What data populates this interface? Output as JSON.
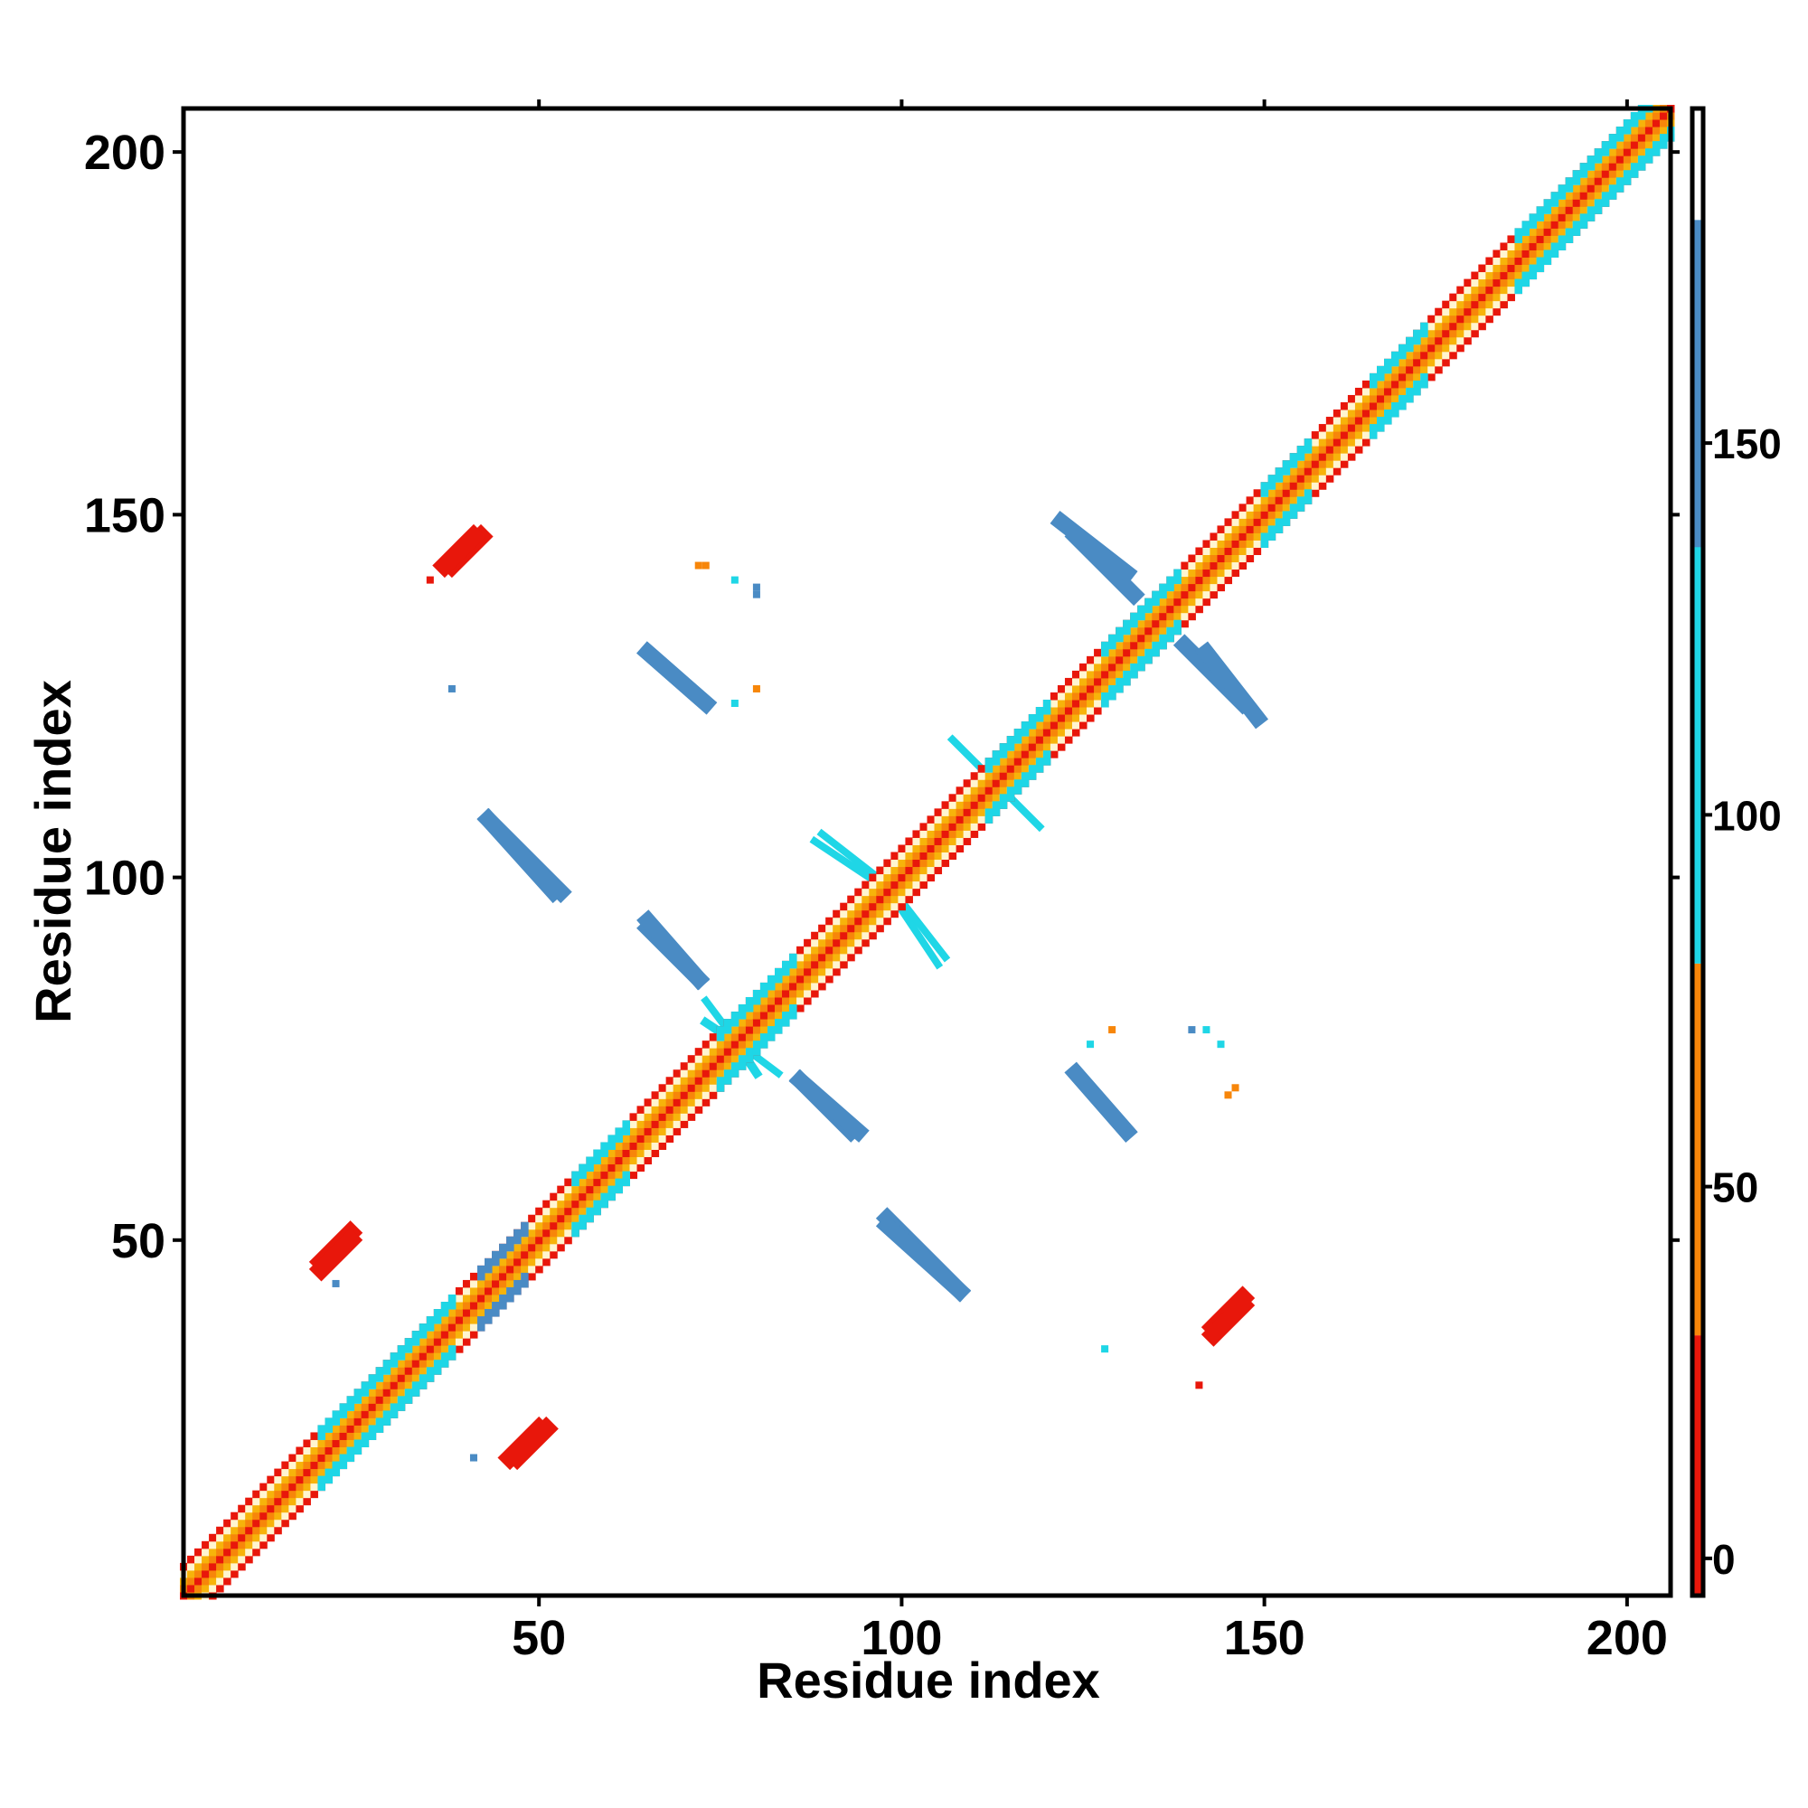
{
  "chart_data": {
    "type": "heatmap",
    "title": "",
    "xlabel": "Residue index",
    "ylabel": "Residue index",
    "xlim": [
      1,
      206
    ],
    "ylim": [
      1,
      206
    ],
    "x_ticks": [
      50,
      100,
      150,
      200
    ],
    "y_ticks": [
      50,
      100,
      150,
      200
    ],
    "colorbar": {
      "ticks": [
        0,
        50,
        100,
        150
      ],
      "range": [
        -5,
        195
      ],
      "segments": [
        {
          "from": -5,
          "to": 30,
          "color": "#e8170b"
        },
        {
          "from": 30,
          "to": 80,
          "color": "#f7860a"
        },
        {
          "from": 80,
          "to": 180,
          "color": "#1fd6e6"
        },
        {
          "from": 180,
          "to": 195,
          "color": "#ffffff"
        }
      ],
      "upper_band": {
        "from": 100,
        "to": 180,
        "color": "#4a8bc4"
      }
    },
    "grid": false,
    "legend": "colorbar-right",
    "diagonal": {
      "from": 1,
      "to": 206,
      "band_width": 4,
      "pattern": [
        "#e8170b",
        "#f7860a",
        "#f7b30a",
        "#fff5d0"
      ]
    },
    "diagonal_highlights": [
      {
        "from": 20,
        "to": 38,
        "value": 110
      },
      {
        "from": 42,
        "to": 48,
        "value": 140
      },
      {
        "from": 55,
        "to": 62,
        "value": 110
      },
      {
        "from": 75,
        "to": 85,
        "value": 110
      },
      {
        "from": 112,
        "to": 120,
        "value": 110
      },
      {
        "from": 128,
        "to": 138,
        "value": 110
      },
      {
        "from": 150,
        "to": 156,
        "value": 110
      },
      {
        "from": 165,
        "to": 172,
        "value": 110
      },
      {
        "from": 185,
        "to": 206,
        "value": 110
      }
    ],
    "contact_segments": [
      {
        "x1": 43,
        "y1": 108,
        "x2": 53,
        "y2": 98,
        "width": 2.2,
        "value": 145
      },
      {
        "x1": 65,
        "y1": 93,
        "x2": 72,
        "y2": 86,
        "width": 2.2,
        "value": 145
      },
      {
        "x1": 65,
        "y1": 131,
        "x2": 73,
        "y2": 124,
        "width": 2.2,
        "value": 145
      },
      {
        "x1": 86,
        "y1": 72,
        "x2": 94,
        "y2": 65,
        "width": 2.2,
        "value": 145
      },
      {
        "x1": 98,
        "y1": 52,
        "x2": 108,
        "y2": 43,
        "width": 2.2,
        "value": 145
      },
      {
        "x1": 124,
        "y1": 147,
        "x2": 132,
        "y2": 139,
        "width": 2.2,
        "value": 145
      },
      {
        "x1": 124,
        "y1": 73,
        "x2": 131,
        "y2": 65,
        "width": 2.2,
        "value": 145
      },
      {
        "x1": 142,
        "y1": 131,
        "x2": 149,
        "y2": 122,
        "width": 2.2,
        "value": 145
      },
      {
        "x1": 38,
        "y1": 143,
        "x2": 42,
        "y2": 147,
        "width": 2.4,
        "value": 10
      },
      {
        "x1": 20,
        "y1": 47,
        "x2": 24,
        "y2": 51,
        "width": 2.4,
        "value": 10
      },
      {
        "x1": 46,
        "y1": 20,
        "x2": 50,
        "y2": 24,
        "width": 2.4,
        "value": 10
      },
      {
        "x1": 143,
        "y1": 37,
        "x2": 147,
        "y2": 41,
        "width": 2.4,
        "value": 10
      },
      {
        "x1": 88,
        "y1": 105,
        "x2": 97,
        "y2": 99,
        "width": 1.0,
        "value": 115
      },
      {
        "x1": 99,
        "y1": 98,
        "x2": 106,
        "y2": 89,
        "width": 1.0,
        "value": 115
      },
      {
        "x1": 107,
        "y1": 119,
        "x2": 113,
        "y2": 113,
        "width": 1.0,
        "value": 115
      },
      {
        "x1": 113,
        "y1": 113,
        "x2": 119,
        "y2": 107,
        "width": 1.0,
        "value": 115
      },
      {
        "x1": 73,
        "y1": 80,
        "x2": 79,
        "y2": 76,
        "width": 1.2,
        "value": 115
      },
      {
        "x1": 79,
        "y1": 76,
        "x2": 83,
        "y2": 73,
        "width": 1.0,
        "value": 115
      }
    ],
    "contact_points": [
      {
        "x": 72,
        "y": 143,
        "value": 60
      },
      {
        "x": 73,
        "y": 143,
        "value": 60
      },
      {
        "x": 77,
        "y": 141,
        "value": 110
      },
      {
        "x": 80,
        "y": 140,
        "value": 145
      },
      {
        "x": 80,
        "y": 139,
        "value": 145
      },
      {
        "x": 77,
        "y": 124,
        "value": 110
      },
      {
        "x": 80,
        "y": 126,
        "value": 40
      },
      {
        "x": 35,
        "y": 141,
        "value": 20
      },
      {
        "x": 38,
        "y": 126,
        "value": 145
      },
      {
        "x": 22,
        "y": 44,
        "value": 145
      },
      {
        "x": 128,
        "y": 35,
        "value": 110
      },
      {
        "x": 141,
        "y": 30,
        "value": 20
      },
      {
        "x": 41,
        "y": 20,
        "value": 145
      },
      {
        "x": 129,
        "y": 79,
        "value": 40
      },
      {
        "x": 126,
        "y": 77,
        "value": 110
      },
      {
        "x": 140,
        "y": 79,
        "value": 145
      },
      {
        "x": 142,
        "y": 79,
        "value": 110
      },
      {
        "x": 144,
        "y": 77,
        "value": 110
      },
      {
        "x": 145,
        "y": 70,
        "value": 60
      },
      {
        "x": 146,
        "y": 71,
        "value": 60
      },
      {
        "x": 75,
        "y": 77,
        "value": 40
      },
      {
        "x": 78,
        "y": 75,
        "value": 60
      }
    ]
  },
  "colors": {
    "axis": "#000000",
    "background": "#ffffff"
  }
}
